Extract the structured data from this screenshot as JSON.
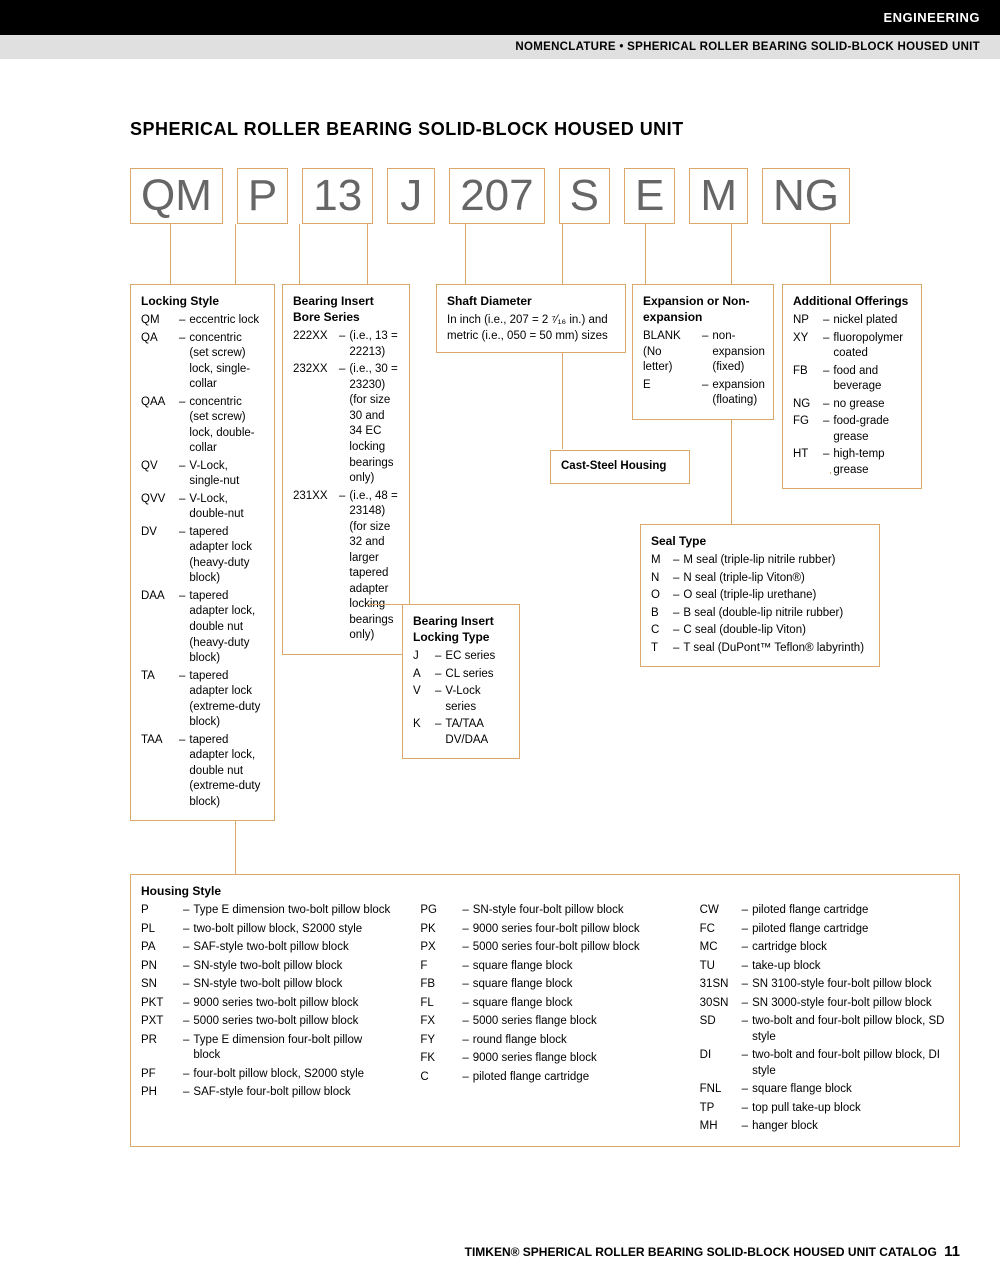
{
  "header": {
    "category": "ENGINEERING",
    "subheader": "NOMENCLATURE • SPHERICAL ROLLER BEARING SOLID-BLOCK HOUSED UNIT"
  },
  "title": "SPHERICAL ROLLER BEARING SOLID-BLOCK HOUSED UNIT",
  "code_parts": [
    "QM",
    "P",
    "13",
    "J",
    "207",
    "S",
    "E",
    "M",
    "NG"
  ],
  "locking_style": {
    "title": "Locking Style",
    "items": [
      {
        "code": "QM",
        "desc": "eccentric lock"
      },
      {
        "code": "QA",
        "desc": "concentric (set screw) lock, single-collar"
      },
      {
        "code": "QAA",
        "desc": "concentric (set screw) lock, double-collar"
      },
      {
        "code": "QV",
        "desc": "V-Lock, single-nut"
      },
      {
        "code": "QVV",
        "desc": "V-Lock, double-nut"
      },
      {
        "code": "DV",
        "desc": "tapered adapter lock (heavy-duty block)"
      },
      {
        "code": "DAA",
        "desc": "tapered adapter lock, double nut (heavy-duty block)"
      },
      {
        "code": "TA",
        "desc": "tapered adapter lock (extreme-duty block)"
      },
      {
        "code": "TAA",
        "desc": "tapered adapter lock, double nut (extreme-duty block)"
      }
    ]
  },
  "bearing_insert": {
    "title": "Bearing Insert Bore Series",
    "items": [
      {
        "code": "222XX",
        "desc": "(i.e., 13 = 22213)"
      },
      {
        "code": "232XX",
        "desc": "(i.e., 30 = 23230) (for size 30 and 34 EC locking bearings only)"
      },
      {
        "code": "231XX",
        "desc": "(i.e., 48 = 23148) (for size 32 and larger tapered adapter locking bearings only)"
      }
    ]
  },
  "locking_type": {
    "title": "Bearing Insert Locking Type",
    "items": [
      {
        "code": "J",
        "desc": "EC series"
      },
      {
        "code": "A",
        "desc": "CL series"
      },
      {
        "code": "V",
        "desc": "V-Lock series"
      },
      {
        "code": "K",
        "desc": "TA/TAA DV/DAA"
      }
    ]
  },
  "shaft_diameter": {
    "title": "Shaft Diameter",
    "text": "In inch (i.e., 207 = 2 ⁷⁄₁₆ in.) and metric (i.e., 050 = 50 mm) sizes"
  },
  "cast_steel": "Cast-Steel Housing",
  "expansion": {
    "title": "Expansion or Non-expansion",
    "items": [
      {
        "code": "BLANK (No letter)",
        "desc": "non-expansion (fixed)"
      },
      {
        "code": "E",
        "desc": "expansion (floating)"
      }
    ]
  },
  "seal_type": {
    "title": "Seal Type",
    "items": [
      {
        "code": "M",
        "desc": "M seal (triple-lip nitrile rubber)"
      },
      {
        "code": "N",
        "desc": "N seal (triple-lip Viton®)"
      },
      {
        "code": "O",
        "desc": "O seal (triple-lip urethane)"
      },
      {
        "code": "B",
        "desc": "B seal (double-lip nitrile rubber)"
      },
      {
        "code": "C",
        "desc": "C seal (double-lip Viton)"
      },
      {
        "code": "T",
        "desc": "T seal (DuPont™ Teflon® labyrinth)"
      }
    ]
  },
  "additional": {
    "title": "Additional Offerings",
    "items": [
      {
        "code": "NP",
        "desc": "nickel plated"
      },
      {
        "code": "XY",
        "desc": "fluoropolymer coated"
      },
      {
        "code": "FB",
        "desc": "food and beverage"
      },
      {
        "code": "NG",
        "desc": "no grease"
      },
      {
        "code": "FG",
        "desc": "food-grade grease"
      },
      {
        "code": "HT",
        "desc": "high-temp grease"
      }
    ]
  },
  "housing_style": {
    "title": "Housing Style",
    "col1": [
      {
        "code": "P",
        "desc": "Type E dimension two-bolt pillow block"
      },
      {
        "code": "PL",
        "desc": "two-bolt pillow block, S2000 style"
      },
      {
        "code": "PA",
        "desc": "SAF-style two-bolt pillow block"
      },
      {
        "code": "PN",
        "desc": "SN-style two-bolt pillow block"
      },
      {
        "code": "SN",
        "desc": "SN-style two-bolt pillow block"
      },
      {
        "code": "PKT",
        "desc": "9000 series two-bolt pillow block"
      },
      {
        "code": "PXT",
        "desc": "5000 series two-bolt pillow block"
      },
      {
        "code": "PR",
        "desc": "Type E dimension four-bolt pillow block"
      },
      {
        "code": "PF",
        "desc": "four-bolt pillow block, S2000 style"
      },
      {
        "code": "PH",
        "desc": "SAF-style four-bolt pillow block"
      }
    ],
    "col2": [
      {
        "code": "PG",
        "desc": "SN-style four-bolt pillow block"
      },
      {
        "code": "PK",
        "desc": "9000 series four-bolt pillow block"
      },
      {
        "code": "PX",
        "desc": "5000 series four-bolt pillow block"
      },
      {
        "code": "F",
        "desc": "square flange block"
      },
      {
        "code": "FB",
        "desc": "square flange block"
      },
      {
        "code": "FL",
        "desc": "square flange block"
      },
      {
        "code": "FX",
        "desc": "5000 series flange block"
      },
      {
        "code": "FY",
        "desc": "round flange block"
      },
      {
        "code": "FK",
        "desc": "9000 series flange block"
      },
      {
        "code": "C",
        "desc": "piloted flange cartridge"
      }
    ],
    "col3": [
      {
        "code": "CW",
        "desc": "piloted flange cartridge"
      },
      {
        "code": "FC",
        "desc": "piloted flange cartridge"
      },
      {
        "code": "MC",
        "desc": "cartridge block"
      },
      {
        "code": "TU",
        "desc": "take-up block"
      },
      {
        "code": "31SN",
        "desc": "SN 3100-style four-bolt pillow block"
      },
      {
        "code": "30SN",
        "desc": "SN 3000-style four-bolt pillow block"
      },
      {
        "code": "SD",
        "desc": "two-bolt and four-bolt pillow block, SD style"
      },
      {
        "code": "DI",
        "desc": "two-bolt and four-bolt pillow block, DI style"
      },
      {
        "code": "FNL",
        "desc": "square flange block"
      },
      {
        "code": "TP",
        "desc": "top pull take-up block"
      },
      {
        "code": "MH",
        "desc": "hanger block"
      }
    ]
  },
  "footer": {
    "text": "TIMKEN® SPHERICAL ROLLER BEARING SOLID-BLOCK HOUSED UNIT CATALOG",
    "page": "11"
  },
  "colors": {
    "box_border": "#d9a86a",
    "code_text": "#666666",
    "black": "#000000",
    "gray_bar": "#e0e0e0"
  }
}
